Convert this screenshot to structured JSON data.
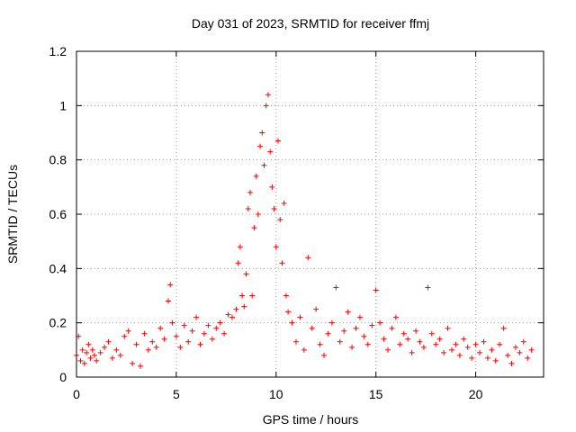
{
  "chart_data": {
    "type": "scatter",
    "title": "Day 031 of 2023, SRMTID for receiver ffmj",
    "xlabel": "GPS time / hours",
    "ylabel": "SRMTID / TECUs",
    "xlim": [
      0,
      23.4
    ],
    "ylim": [
      0,
      1.2
    ],
    "xticks": [
      {
        "value": 0,
        "label": "0"
      },
      {
        "value": 5,
        "label": "5"
      },
      {
        "value": 10,
        "label": "10"
      },
      {
        "value": 15,
        "label": "15"
      },
      {
        "value": 20,
        "label": "20"
      }
    ],
    "yticks": [
      {
        "value": 0,
        "label": "0"
      },
      {
        "value": 0.2,
        "label": "0.2"
      },
      {
        "value": 0.4,
        "label": "0.4"
      },
      {
        "value": 0.6,
        "label": "0.6"
      },
      {
        "value": 0.8,
        "label": "0.8"
      },
      {
        "value": 1,
        "label": "1"
      },
      {
        "value": 1.2,
        "label": "1.2"
      }
    ],
    "grid": true,
    "marker": "+",
    "color": "#ff0000",
    "series": [
      {
        "name": "SRMTID",
        "x": [
          0.0,
          0.1,
          0.2,
          0.3,
          0.4,
          0.5,
          0.6,
          0.7,
          0.8,
          0.9,
          1.0,
          1.2,
          1.4,
          1.6,
          1.8,
          2.0,
          2.2,
          2.4,
          2.6,
          2.8,
          3.0,
          3.2,
          3.4,
          3.6,
          3.8,
          4.0,
          4.2,
          4.4,
          4.6,
          4.7,
          4.8,
          5.0,
          5.2,
          5.4,
          5.6,
          5.8,
          6.0,
          6.2,
          6.4,
          6.6,
          6.8,
          7.0,
          7.2,
          7.4,
          7.6,
          7.8,
          8.0,
          8.1,
          8.2,
          8.3,
          8.4,
          8.5,
          8.6,
          8.7,
          8.8,
          8.9,
          9.0,
          9.1,
          9.2,
          9.3,
          9.4,
          9.5,
          9.6,
          9.7,
          9.8,
          9.9,
          10.0,
          10.1,
          10.2,
          10.3,
          10.4,
          10.5,
          10.6,
          10.8,
          11.0,
          11.2,
          11.4,
          11.6,
          11.8,
          12.0,
          12.2,
          12.4,
          12.6,
          12.8,
          13.0,
          13.2,
          13.4,
          13.6,
          13.8,
          14.0,
          14.2,
          14.4,
          14.6,
          14.8,
          15.0,
          15.2,
          15.4,
          15.6,
          15.8,
          16.0,
          16.2,
          16.4,
          16.6,
          16.8,
          17.0,
          17.2,
          17.4,
          17.6,
          17.8,
          18.0,
          18.2,
          18.4,
          18.6,
          18.8,
          19.0,
          19.2,
          19.4,
          19.6,
          19.8,
          20.0,
          20.2,
          20.4,
          20.6,
          20.8,
          21.0,
          21.2,
          21.4,
          21.6,
          21.8,
          22.0,
          22.2,
          22.4,
          22.6,
          22.8
        ],
        "y": [
          0.08,
          0.15,
          0.06,
          0.1,
          0.05,
          0.09,
          0.12,
          0.07,
          0.1,
          0.08,
          0.06,
          0.09,
          0.11,
          0.13,
          0.07,
          0.1,
          0.08,
          0.15,
          0.17,
          0.05,
          0.12,
          0.04,
          0.16,
          0.1,
          0.13,
          0.11,
          0.18,
          0.14,
          0.28,
          0.34,
          0.2,
          0.15,
          0.11,
          0.19,
          0.13,
          0.17,
          0.22,
          0.12,
          0.16,
          0.19,
          0.14,
          0.18,
          0.2,
          0.16,
          0.23,
          0.22,
          0.25,
          0.42,
          0.48,
          0.3,
          0.26,
          0.38,
          0.62,
          0.68,
          0.3,
          0.55,
          0.74,
          0.6,
          0.85,
          0.9,
          0.78,
          1.0,
          1.04,
          0.83,
          0.7,
          0.62,
          0.48,
          0.87,
          0.58,
          0.42,
          0.64,
          0.3,
          0.24,
          0.2,
          0.13,
          0.22,
          0.1,
          0.44,
          0.18,
          0.25,
          0.12,
          0.08,
          0.16,
          0.2,
          0.33,
          0.13,
          0.17,
          0.24,
          0.11,
          0.18,
          0.22,
          0.15,
          0.12,
          0.19,
          0.32,
          0.2,
          0.14,
          0.1,
          0.18,
          0.22,
          0.12,
          0.16,
          0.14,
          0.09,
          0.17,
          0.13,
          0.11,
          0.33,
          0.16,
          0.12,
          0.14,
          0.09,
          0.18,
          0.1,
          0.12,
          0.08,
          0.14,
          0.11,
          0.07,
          0.12,
          0.09,
          0.13,
          0.07,
          0.1,
          0.06,
          0.12,
          0.18,
          0.08,
          0.05,
          0.11,
          0.09,
          0.13,
          0.07,
          0.1
        ]
      }
    ]
  }
}
